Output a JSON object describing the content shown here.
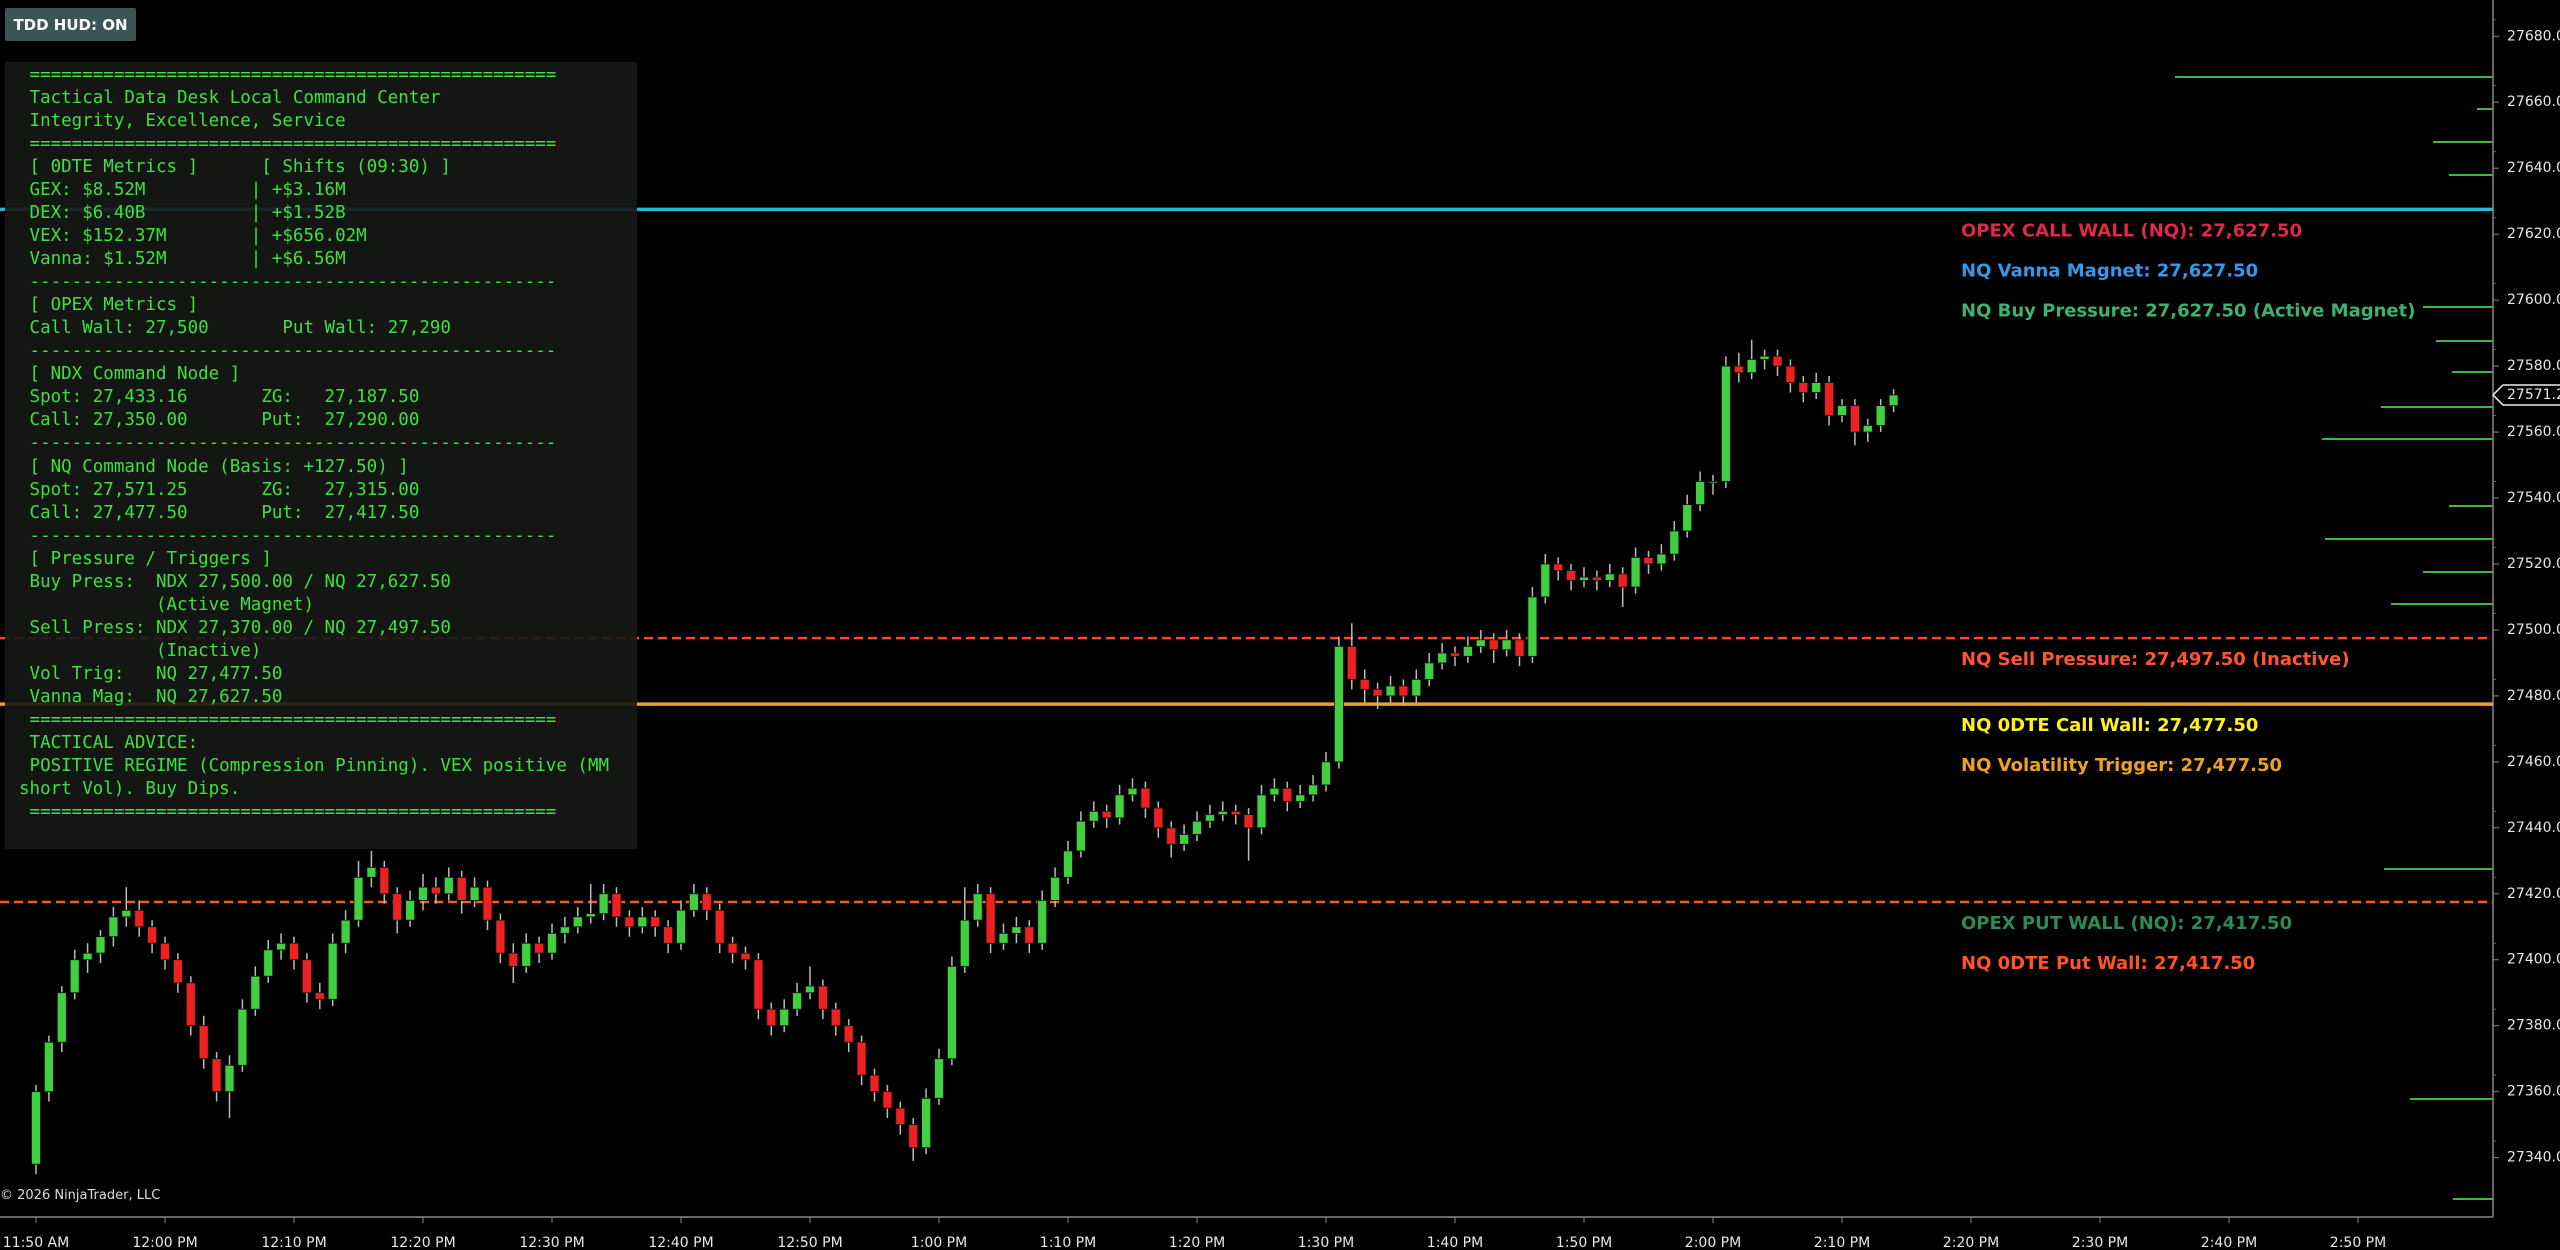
{
  "hud_button": {
    "label": "TDD HUD: ON"
  },
  "hud": {
    "lines": [
      " ==================================================",
      " Tactical Data Desk Local Command Center",
      " Integrity, Excellence, Service",
      " ==================================================",
      " [ 0DTE Metrics ]      [ Shifts (09:30) ]",
      " GEX: $8.52M          | +$3.16M",
      " DEX: $6.40B          | +$1.52B",
      " VEX: $152.37M        | +$656.02M",
      " Vanna: $1.52M        | +$6.56M",
      " --------------------------------------------------",
      " [ OPEX Metrics ]",
      " Call Wall: 27,500       Put Wall: 27,290",
      " --------------------------------------------------",
      " [ NDX Command Node ]",
      " Spot: 27,433.16       ZG:   27,187.50",
      " Call: 27,350.00       Put:  27,290.00",
      " --------------------------------------------------",
      " [ NQ Command Node (Basis: +127.50) ]",
      " Spot: 27,571.25       ZG:   27,315.00",
      " Call: 27,477.50       Put:  27,417.50",
      " --------------------------------------------------",
      " [ Pressure / Triggers ]",
      " Buy Press:  NDX 27,500.00 / NQ 27,627.50",
      "             (Active Magnet)",
      " Sell Press: NDX 27,370.00 / NQ 27,497.50",
      "             (Inactive)",
      " Vol Trig:   NQ 27,477.50",
      " Vanna Mag:  NQ 27,627.50",
      " ==================================================",
      " TACTICAL ADVICE:",
      " POSITIVE REGIME (Compression Pinning). VEX positive (MM",
      "short Vol). Buy Dips.",
      " =================================================="
    ]
  },
  "copyright": "© 2026 NinjaTrader, LLC",
  "chart_data": {
    "type": "candlestick",
    "up_color": "#3fcf3f",
    "down_color": "#ee2020",
    "x": [
      "11:50 AM",
      "11:51 AM",
      "11:52 AM",
      "11:53 AM",
      "11:54 AM",
      "11:55 AM",
      "11:56 AM",
      "11:57 AM",
      "11:58 AM",
      "11:59 AM",
      "12:00 PM",
      "12:01 PM",
      "12:02 PM",
      "12:03 PM",
      "12:04 PM",
      "12:05 PM",
      "12:06 PM",
      "12:07 PM",
      "12:08 PM",
      "12:09 PM",
      "12:10 PM",
      "12:11 PM",
      "12:12 PM",
      "12:13 PM",
      "12:14 PM",
      "12:15 PM",
      "12:16 PM",
      "12:17 PM",
      "12:18 PM",
      "12:19 PM",
      "12:20 PM",
      "12:21 PM",
      "12:22 PM",
      "12:23 PM",
      "12:24 PM",
      "12:25 PM",
      "12:26 PM",
      "12:27 PM",
      "12:28 PM",
      "12:29 PM",
      "12:30 PM",
      "12:31 PM",
      "12:32 PM",
      "12:33 PM",
      "12:34 PM",
      "12:35 PM",
      "12:36 PM",
      "12:37 PM",
      "12:38 PM",
      "12:39 PM",
      "12:40 PM",
      "12:41 PM",
      "12:42 PM",
      "12:43 PM",
      "12:44 PM",
      "12:45 PM",
      "12:46 PM",
      "12:47 PM",
      "12:48 PM",
      "12:49 PM",
      "12:50 PM",
      "12:51 PM",
      "12:52 PM",
      "12:53 PM",
      "12:54 PM",
      "12:55 PM",
      "12:56 PM",
      "12:57 PM",
      "12:58 PM",
      "12:59 PM",
      "1:00 PM",
      "1:01 PM",
      "1:02 PM",
      "1:03 PM",
      "1:04 PM",
      "1:05 PM",
      "1:06 PM",
      "1:07 PM",
      "1:08 PM",
      "1:09 PM",
      "1:10 PM",
      "1:11 PM",
      "1:12 PM",
      "1:13 PM",
      "1:14 PM",
      "1:15 PM",
      "1:16 PM",
      "1:17 PM",
      "1:18 PM",
      "1:19 PM",
      "1:20 PM",
      "1:21 PM",
      "1:22 PM",
      "1:23 PM",
      "1:24 PM",
      "1:25 PM",
      "1:26 PM",
      "1:27 PM",
      "1:28 PM",
      "1:29 PM",
      "1:30 PM",
      "1:31 PM",
      "1:32 PM",
      "1:33 PM",
      "1:34 PM",
      "1:35 PM",
      "1:36 PM",
      "1:37 PM",
      "1:38 PM",
      "1:39 PM",
      "1:40 PM",
      "1:41 PM",
      "1:42 PM",
      "1:43 PM",
      "1:44 PM",
      "1:45 PM",
      "1:46 PM",
      "1:47 PM",
      "1:48 PM",
      "1:49 PM",
      "1:50 PM",
      "1:51 PM",
      "1:52 PM",
      "1:53 PM",
      "1:54 PM",
      "1:55 PM",
      "1:56 PM",
      "1:57 PM",
      "1:58 PM",
      "1:59 PM",
      "2:00 PM",
      "2:01 PM",
      "2:02 PM",
      "2:03 PM",
      "2:04 PM",
      "2:05 PM",
      "2:06 PM",
      "2:07 PM",
      "2:08 PM",
      "2:09 PM",
      "2:10 PM",
      "2:11 PM",
      "2:12 PM",
      "2:13 PM",
      "2:14 PM"
    ],
    "ohlc": [
      [
        27338,
        27362,
        27335,
        27360
      ],
      [
        27360,
        27377,
        27357,
        27375
      ],
      [
        27375,
        27392,
        27372,
        27390
      ],
      [
        27390,
        27403,
        27388,
        27400
      ],
      [
        27400,
        27405,
        27396,
        27402
      ],
      [
        27402,
        27409,
        27399,
        27407
      ],
      [
        27407,
        27416,
        27404,
        27413
      ],
      [
        27413,
        27422,
        27410,
        27415
      ],
      [
        27415,
        27418,
        27407,
        27410
      ],
      [
        27410,
        27412,
        27402,
        27405
      ],
      [
        27405,
        27407,
        27397,
        27400
      ],
      [
        27400,
        27402,
        27390,
        27393
      ],
      [
        27393,
        27395,
        27377,
        27380
      ],
      [
        27380,
        27383,
        27367,
        27370
      ],
      [
        27370,
        27372,
        27357,
        27360
      ],
      [
        27360,
        27371,
        27352,
        27368
      ],
      [
        27368,
        27388,
        27366,
        27385
      ],
      [
        27385,
        27398,
        27383,
        27395
      ],
      [
        27395,
        27406,
        27393,
        27403
      ],
      [
        27403,
        27408,
        27400,
        27405
      ],
      [
        27405,
        27407,
        27397,
        27400
      ],
      [
        27400,
        27402,
        27387,
        27390
      ],
      [
        27390,
        27393,
        27385,
        27388
      ],
      [
        27388,
        27408,
        27386,
        27405
      ],
      [
        27405,
        27415,
        27402,
        27412
      ],
      [
        27412,
        27430,
        27410,
        27425
      ],
      [
        27425,
        27433,
        27422,
        27428
      ],
      [
        27428,
        27430,
        27417,
        27420
      ],
      [
        27420,
        27422,
        27408,
        27412
      ],
      [
        27412,
        27421,
        27410,
        27418
      ],
      [
        27418,
        27426,
        27415,
        27422
      ],
      [
        27422,
        27425,
        27417,
        27420
      ],
      [
        27420,
        27428,
        27418,
        27425
      ],
      [
        27425,
        27427,
        27414,
        27418
      ],
      [
        27418,
        27425,
        27416,
        27422
      ],
      [
        27422,
        27424,
        27409,
        27412
      ],
      [
        27412,
        27414,
        27399,
        27402
      ],
      [
        27402,
        27405,
        27393,
        27398
      ],
      [
        27398,
        27408,
        27396,
        27405
      ],
      [
        27405,
        27407,
        27399,
        27402
      ],
      [
        27402,
        27411,
        27400,
        27408
      ],
      [
        27408,
        27413,
        27405,
        27410
      ],
      [
        27410,
        27416,
        27408,
        27413
      ],
      [
        27413,
        27423,
        27411,
        27414
      ],
      [
        27414,
        27423,
        27412,
        27420
      ],
      [
        27420,
        27422,
        27410,
        27413
      ],
      [
        27413,
        27415,
        27407,
        27410
      ],
      [
        27410,
        27416,
        27408,
        27413
      ],
      [
        27413,
        27415,
        27407,
        27410
      ],
      [
        27410,
        27412,
        27402,
        27405
      ],
      [
        27405,
        27418,
        27403,
        27415
      ],
      [
        27415,
        27423,
        27413,
        27420
      ],
      [
        27420,
        27422,
        27412,
        27415
      ],
      [
        27415,
        27417,
        27402,
        27405
      ],
      [
        27405,
        27407,
        27399,
        27402
      ],
      [
        27402,
        27404,
        27397,
        27400
      ],
      [
        27400,
        27402,
        27382,
        27385
      ],
      [
        27385,
        27387,
        27377,
        27380
      ],
      [
        27380,
        27388,
        27378,
        27385
      ],
      [
        27385,
        27393,
        27383,
        27390
      ],
      [
        27390,
        27398,
        27388,
        27392
      ],
      [
        27392,
        27394,
        27382,
        27385
      ],
      [
        27385,
        27387,
        27377,
        27380
      ],
      [
        27380,
        27382,
        27372,
        27375
      ],
      [
        27375,
        27377,
        27362,
        27365
      ],
      [
        27365,
        27367,
        27357,
        27360
      ],
      [
        27360,
        27362,
        27352,
        27355
      ],
      [
        27355,
        27357,
        27347,
        27350
      ],
      [
        27350,
        27352,
        27339,
        27343
      ],
      [
        27343,
        27361,
        27341,
        27358
      ],
      [
        27358,
        27373,
        27356,
        27370
      ],
      [
        27370,
        27401,
        27368,
        27398
      ],
      [
        27398,
        27422,
        27396,
        27412
      ],
      [
        27412,
        27423,
        27410,
        27420
      ],
      [
        27420,
        27422,
        27402,
        27405
      ],
      [
        27405,
        27411,
        27403,
        27408
      ],
      [
        27408,
        27413,
        27405,
        27410
      ],
      [
        27410,
        27412,
        27402,
        27405
      ],
      [
        27405,
        27421,
        27403,
        27418
      ],
      [
        27418,
        27428,
        27416,
        27425
      ],
      [
        27425,
        27436,
        27423,
        27433
      ],
      [
        27433,
        27445,
        27431,
        27442
      ],
      [
        27442,
        27448,
        27440,
        27445
      ],
      [
        27445,
        27447,
        27440,
        27443
      ],
      [
        27443,
        27453,
        27441,
        27450
      ],
      [
        27450,
        27455,
        27448,
        27452
      ],
      [
        27452,
        27454,
        27443,
        27446
      ],
      [
        27446,
        27448,
        27437,
        27440
      ],
      [
        27440,
        27442,
        27431,
        27435
      ],
      [
        27435,
        27441,
        27433,
        27438
      ],
      [
        27438,
        27445,
        27436,
        27442
      ],
      [
        27442,
        27447,
        27440,
        27444
      ],
      [
        27444,
        27448,
        27442,
        27445
      ],
      [
        27445,
        27447,
        27441,
        27444
      ],
      [
        27444,
        27446,
        27430,
        27440
      ],
      [
        27440,
        27453,
        27438,
        27450
      ],
      [
        27450,
        27455,
        27448,
        27452
      ],
      [
        27452,
        27454,
        27445,
        27448
      ],
      [
        27448,
        27453,
        27446,
        27450
      ],
      [
        27450,
        27456,
        27448,
        27453
      ],
      [
        27453,
        27463,
        27451,
        27460
      ],
      [
        27460,
        27498,
        27458,
        27495
      ],
      [
        27495,
        27502,
        27482,
        27485
      ],
      [
        27485,
        27488,
        27478,
        27482
      ],
      [
        27482,
        27484,
        27476,
        27480
      ],
      [
        27480,
        27486,
        27478,
        27483
      ],
      [
        27483,
        27485,
        27477,
        27480
      ],
      [
        27480,
        27488,
        27478,
        27485
      ],
      [
        27485,
        27493,
        27483,
        27490
      ],
      [
        27490,
        27496,
        27488,
        27493
      ],
      [
        27493,
        27495,
        27489,
        27492
      ],
      [
        27492,
        27498,
        27490,
        27495
      ],
      [
        27495,
        27500,
        27493,
        27497
      ],
      [
        27497,
        27499,
        27490,
        27494
      ],
      [
        27494,
        27500,
        27492,
        27497
      ],
      [
        27497,
        27499,
        27489,
        27492
      ],
      [
        27492,
        27513,
        27490,
        27510
      ],
      [
        27510,
        27523,
        27508,
        27520
      ],
      [
        27520,
        27522,
        27515,
        27518
      ],
      [
        27518,
        27520,
        27512,
        27515
      ],
      [
        27515,
        27519,
        27513,
        27516
      ],
      [
        27516,
        27518,
        27512,
        27515
      ],
      [
        27515,
        27520,
        27513,
        27517
      ],
      [
        27517,
        27519,
        27507,
        27513
      ],
      [
        27513,
        27525,
        27511,
        27522
      ],
      [
        27522,
        27524,
        27517,
        27520
      ],
      [
        27520,
        27526,
        27518,
        27523
      ],
      [
        27523,
        27533,
        27521,
        27530
      ],
      [
        27530,
        27541,
        27528,
        27538
      ],
      [
        27538,
        27548,
        27536,
        27545
      ],
      [
        27545,
        27547,
        27541,
        27545
      ],
      [
        27545,
        27583,
        27543,
        27580
      ],
      [
        27580,
        27584,
        27575,
        27578
      ],
      [
        27578,
        27588,
        27576,
        27582
      ],
      [
        27582,
        27585,
        27579,
        27583
      ],
      [
        27583,
        27585,
        27577,
        27580
      ],
      [
        27580,
        27582,
        27572,
        27575
      ],
      [
        27575,
        27577,
        27569,
        27572
      ],
      [
        27572,
        27578,
        27570,
        27575
      ],
      [
        27575,
        27577,
        27562,
        27565
      ],
      [
        27565,
        27570,
        27563,
        27568
      ],
      [
        27568,
        27570,
        27556,
        27560
      ],
      [
        27560,
        27564,
        27557,
        27562
      ],
      [
        27562,
        27570,
        27560,
        27568
      ],
      [
        27568,
        27573,
        27566,
        27571.25
      ]
    ],
    "xticks": [
      "11:50 AM",
      "12:00 PM",
      "12:10 PM",
      "12:20 PM",
      "12:30 PM",
      "12:40 PM",
      "12:50 PM",
      "1:00 PM",
      "1:10 PM",
      "1:20 PM",
      "1:30 PM",
      "1:40 PM",
      "1:50 PM",
      "2:00 PM",
      "2:10 PM",
      "2:20 PM",
      "2:30 PM",
      "2:40 PM",
      "2:50 PM"
    ],
    "ylim": [
      27322,
      27691
    ],
    "yticks": [
      {
        "value": 27340,
        "label": "27340.00"
      },
      {
        "value": 27360,
        "label": "27360.00"
      },
      {
        "value": 27380,
        "label": "27380.00"
      },
      {
        "value": 27400,
        "label": "27400.00"
      },
      {
        "value": 27420,
        "label": "27420.00"
      },
      {
        "value": 27440,
        "label": "27440.00"
      },
      {
        "value": 27460,
        "label": "27460.00"
      },
      {
        "value": 27480,
        "label": "27480.00"
      },
      {
        "value": 27500,
        "label": "27500.00"
      },
      {
        "value": 27520,
        "label": "27520.00"
      },
      {
        "value": 27540,
        "label": "27540.00"
      },
      {
        "value": 27560,
        "label": "27560.00"
      },
      {
        "value": 27580,
        "label": "27580.00"
      },
      {
        "value": 27600,
        "label": "27600.00"
      },
      {
        "value": 27620,
        "label": "27620.00"
      },
      {
        "value": 27640,
        "label": "27640.00"
      },
      {
        "value": 27660,
        "label": "27660.00"
      },
      {
        "value": 27680,
        "label": "27680.00"
      }
    ],
    "levels": [
      {
        "value": 27627.5,
        "color": "#29b6d6",
        "dash": false
      },
      {
        "value": 27497.5,
        "color": "#ff4a2a",
        "dash": true
      },
      {
        "value": 27477.5,
        "color": "#e8a41c",
        "dash": false
      },
      {
        "value": 27417.5,
        "color": "#ff5a1e",
        "dash": true
      }
    ],
    "annotations": [
      {
        "text": "OPEX CALL WALL (NQ): 27,627.50",
        "value": 27627.5,
        "color": "#e0284a"
      },
      {
        "text": "NQ Vanna Magnet: 27,627.50",
        "value": 27627.5,
        "color": "#3399ee"
      },
      {
        "text": "NQ Buy Pressure: 27,627.50 (Active Magnet)",
        "value": 27627.5,
        "color": "#3cb371"
      },
      {
        "text": "NQ Sell Pressure: 27,497.50 (Inactive)",
        "value": 27497.5,
        "color": "#ff5533"
      },
      {
        "text": "NQ 0DTE Call Wall: 27,477.50",
        "value": 27477.5,
        "color": "#ffee22"
      },
      {
        "text": "NQ Volatility Trigger: 27,477.50",
        "value": 27477.5,
        "color": "#f0a020"
      },
      {
        "text": "OPEX PUT WALL (NQ): 27,417.50",
        "value": 27417.5,
        "color": "#2e8b57"
      },
      {
        "text": "NQ 0DTE Put Wall: 27,417.50",
        "value": 27417.5,
        "color": "#ff5522"
      }
    ]
  }
}
